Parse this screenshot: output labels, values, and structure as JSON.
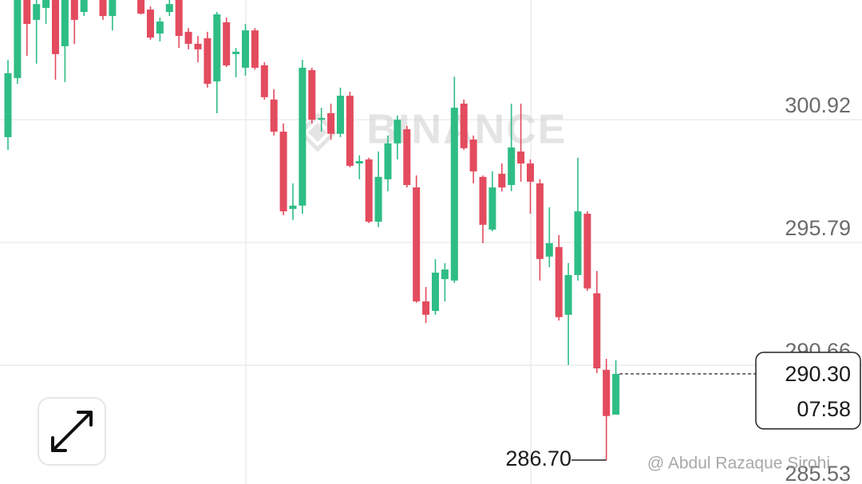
{
  "chart_data": {
    "type": "candlestick",
    "watermark": "BINANCE",
    "attribution": "@ Abdul Razaque Sirohi",
    "up_color": "#2ebd85",
    "down_color": "#e34b5e",
    "ylim": [
      285.7,
      305.92
    ],
    "yticks": [
      300.92,
      295.79,
      290.66,
      285.53
    ],
    "grid": true,
    "open": [
      300.19,
      302.66,
      306.59,
      305.09,
      305.59,
      306.25,
      303.99,
      306.09,
      305.42,
      306.92,
      306.09,
      305.25,
      307.25,
      306.59,
      306.09,
      305.52,
      304.52,
      305.42,
      305.92,
      304.59,
      304.09,
      304.32,
      302.52,
      304.99,
      303.66,
      303.09,
      304.65,
      303.19,
      301.76,
      300.42,
      297.19,
      297.33,
      302.99,
      300.92,
      301.19,
      300.33,
      301.92,
      299.09,
      299.26,
      296.66,
      298.43,
      299.93,
      300.52,
      298.09,
      293.33,
      292.93,
      294.26,
      294.2,
      301.59,
      300.09,
      298.53,
      296.33,
      298.66,
      298.19,
      299.59,
      299.09,
      298.26,
      295.2,
      295.6,
      292.77,
      294.43,
      296.99,
      293.67,
      290.47,
      288.6
    ],
    "high": [
      303.42,
      306.42,
      307.25,
      306.25,
      306.09,
      306.59,
      306.59,
      306.42,
      306.25,
      307.09,
      306.25,
      306.09,
      307.42,
      306.92,
      306.25,
      305.65,
      305.19,
      305.92,
      306.09,
      304.75,
      304.42,
      304.59,
      305.42,
      305.19,
      303.92,
      304.92,
      304.75,
      303.32,
      302.19,
      300.76,
      298.26,
      303.42,
      303.09,
      301.42,
      301.59,
      302.26,
      302.09,
      299.43,
      299.33,
      299.59,
      300.26,
      301.09,
      300.66,
      298.59,
      293.93,
      295.1,
      294.93,
      302.72,
      301.76,
      300.26,
      298.59,
      298.76,
      299.09,
      301.59,
      301.59,
      299.26,
      298.43,
      297.26,
      296.1,
      294.93,
      299.33,
      297.09,
      294.6,
      290.93,
      290.87
    ],
    "low": [
      299.66,
      302.42,
      303.59,
      303.26,
      304.92,
      302.59,
      302.49,
      304.09,
      305.25,
      305.99,
      305.09,
      304.65,
      306.42,
      306.32,
      305.32,
      304.26,
      304.19,
      305.25,
      303.92,
      303.86,
      303.32,
      302.26,
      301.19,
      303.12,
      302.69,
      302.76,
      303.01,
      301.76,
      300.26,
      296.93,
      296.73,
      296.99,
      300.76,
      300.42,
      300.09,
      300.19,
      298.93,
      298.43,
      296.6,
      296.43,
      297.93,
      299.26,
      298.09,
      293.27,
      292.43,
      292.77,
      293.33,
      294.1,
      299.66,
      298.26,
      295.76,
      296.26,
      297.93,
      297.93,
      298.33,
      296.99,
      294.2,
      294.76,
      292.53,
      290.67,
      294.2,
      293.77,
      290.34,
      286.7,
      288.6
    ],
    "close": [
      302.86,
      306.25,
      304.92,
      305.75,
      305.99,
      303.66,
      306.09,
      305.09,
      306.02,
      306.09,
      305.25,
      305.92,
      306.59,
      306.75,
      305.35,
      304.35,
      305.02,
      305.75,
      304.42,
      304.09,
      303.86,
      302.42,
      305.32,
      303.19,
      303.76,
      304.65,
      303.09,
      301.86,
      300.42,
      297.09,
      297.33,
      303.09,
      300.92,
      300.99,
      300.33,
      301.92,
      298.99,
      299.19,
      296.66,
      298.53,
      299.93,
      300.92,
      298.19,
      293.33,
      292.77,
      294.53,
      294.66,
      301.42,
      299.73,
      298.76,
      296.53,
      298.09,
      298.09,
      299.76,
      299.09,
      298.33,
      295.1,
      295.76,
      292.67,
      294.43,
      297.09,
      293.87,
      290.53,
      288.54,
      290.3
    ],
    "last_price": {
      "value": 290.3,
      "label": "290.30"
    },
    "countdown": "07:58",
    "low_marker": {
      "value": 286.7,
      "label": "286.70"
    }
  }
}
